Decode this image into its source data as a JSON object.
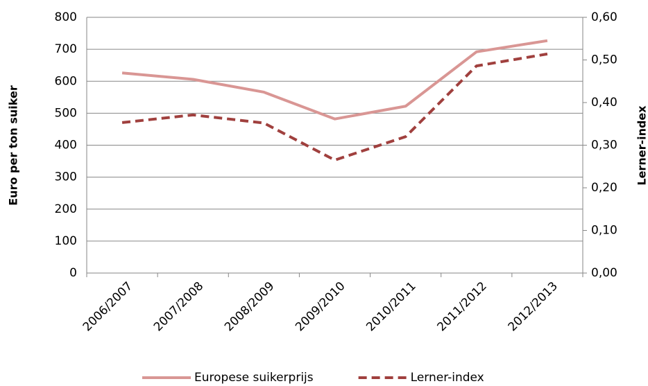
{
  "chart_data": {
    "type": "line",
    "categories": [
      "2006/2007",
      "2007/2008",
      "2008/2009",
      "2009/2010",
      "2010/2011",
      "2011/2012",
      "2012/2013"
    ],
    "series": [
      {
        "name": "Europese suikerprijs",
        "color": "#d99694",
        "values": [
          626,
          606,
          566,
          482,
          522,
          692,
          727
        ]
      },
      {
        "name": "Lerner-index",
        "color": "#a0403e",
        "axis": "y2",
        "dashed": true,
        "values": [
          0.353,
          0.371,
          0.352,
          0.265,
          0.32,
          0.486,
          0.514
        ]
      }
    ],
    "ylabel": "Euro per ton suiker",
    "y2label": "Lerner-index",
    "ylim": [
      0,
      800
    ],
    "yticks": [
      0,
      100,
      200,
      300,
      400,
      500,
      600,
      700,
      800
    ],
    "y2lim": [
      0,
      0.6
    ],
    "y2ticks": [
      {
        "value": 0,
        "label": "0,00"
      },
      {
        "value": 0.1,
        "label": "0,10"
      },
      {
        "value": 0.2,
        "label": "0,20"
      },
      {
        "value": 0.3,
        "label": "0,30"
      },
      {
        "value": 0.4,
        "label": "0,40"
      },
      {
        "value": 0.5,
        "label": "0,50"
      },
      {
        "value": 0.6,
        "label": "0,60"
      }
    ],
    "grid": true,
    "legend": "bottom"
  }
}
